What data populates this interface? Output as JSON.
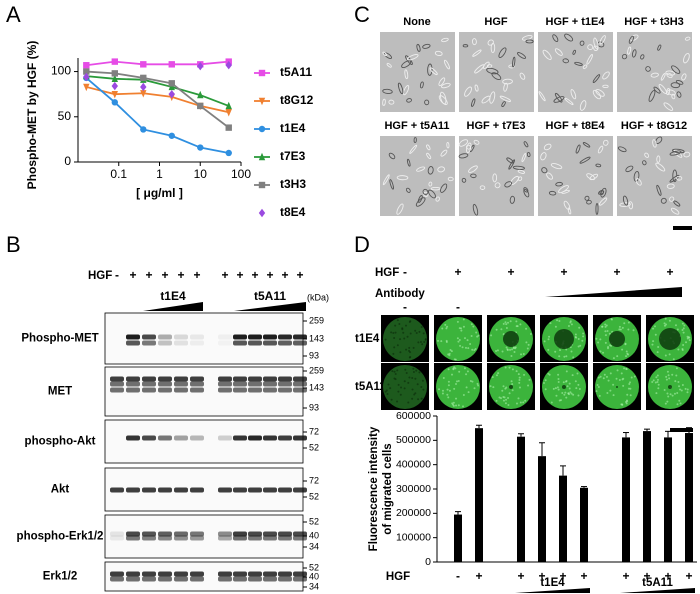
{
  "panel_labels": [
    "A",
    "B",
    "C",
    "D"
  ],
  "chart_data": [
    {
      "type": "line",
      "xscale": "log",
      "ylabel": "Phospho-MET by HGF (%)",
      "xlabel": "[ μg/ml ]",
      "x": [
        0.016,
        0.08,
        0.4,
        2,
        10,
        50
      ],
      "xlim": [
        0.01,
        100
      ],
      "xticks": [
        0.1,
        1,
        10,
        100
      ],
      "ylim": [
        0,
        115
      ],
      "yticks": [
        0,
        50,
        100
      ],
      "legend": "right",
      "series": [
        {
          "name": "t5A11",
          "color": "#e64ce6",
          "marker": "square",
          "values": [
            107,
            111,
            108,
            108,
            108,
            111
          ]
        },
        {
          "name": "t8G12",
          "color": "#f08030",
          "marker": "triangle-down",
          "values": [
            83,
            75,
            76,
            72,
            62,
            55
          ]
        },
        {
          "name": "t1E4",
          "color": "#2f8fe0",
          "marker": "circle",
          "values": [
            93,
            66,
            36,
            29,
            16,
            10
          ]
        },
        {
          "name": "t7E3",
          "color": "#2a9a3a",
          "marker": "triangle-up",
          "values": [
            95,
            92,
            91,
            83,
            74,
            62
          ]
        },
        {
          "name": "t3H3",
          "color": "#808080",
          "marker": "square",
          "values": [
            100,
            98,
            93,
            87,
            62,
            38
          ]
        },
        {
          "name": "t8E4",
          "color": "#9a4ae0",
          "marker": "diamond",
          "show_line": false,
          "values": [
            94,
            84,
            83,
            75,
            106,
            107
          ]
        }
      ]
    },
    {
      "type": "bar",
      "ylabel": [
        "Fluorescence intensity",
        "of migrated cells"
      ],
      "row_label": "HGF",
      "categories": [
        "-",
        "+",
        null,
        "+",
        "+",
        "+",
        "+",
        null,
        "+",
        "+",
        "+",
        "+"
      ],
      "values": [
        195000,
        550000,
        null,
        515000,
        435000,
        355000,
        305000,
        null,
        512000,
        538000,
        512000,
        530000
      ],
      "errors": [
        12000,
        12000,
        null,
        12000,
        55000,
        40000,
        5000,
        null,
        20000,
        8000,
        25000,
        22000
      ],
      "color": "#000000",
      "ylim": [
        0,
        600000
      ],
      "yticks": [
        0,
        100000,
        200000,
        300000,
        400000,
        500000,
        600000
      ],
      "groups": [
        "t1E4",
        "t5A11"
      ]
    }
  ],
  "blot": {
    "treatment_label": "HGF",
    "signs": [
      "-",
      "+",
      "+",
      "+",
      "+",
      "+",
      "+",
      "+",
      "+",
      "+",
      "+",
      "+"
    ],
    "groups": [
      "t1E4",
      "t5A11"
    ],
    "unit": "(kDa)",
    "rows": [
      {
        "label": "Phospho-MET",
        "markers": [
          259,
          143,
          93
        ]
      },
      {
        "label": "MET",
        "markers": [
          259,
          143,
          93
        ]
      },
      {
        "label": "phospho-Akt",
        "markers": [
          72,
          52
        ]
      },
      {
        "label": "Akt",
        "markers": [
          72,
          52
        ]
      },
      {
        "label": "phospho-Erk1/2",
        "markers": [
          52,
          40,
          34
        ]
      },
      {
        "label": "Erk1/2",
        "markers": [
          52,
          40,
          34
        ]
      }
    ]
  },
  "micrographs": {
    "labels": [
      "None",
      "HGF",
      "HGF + t1E4",
      "HGF + t3H3",
      "HGF + t5A11",
      "HGF + t7E3",
      "HGF + t8E4",
      "HGF + t8G12"
    ]
  },
  "migration": {
    "hgf_label": "HGF",
    "hgf_signs": [
      "-",
      "+",
      "+",
      "+",
      "+",
      "+"
    ],
    "antibody_label": "Antibody",
    "antibody_signs": [
      "-",
      "-"
    ],
    "rows": [
      "t1E4",
      "t5A11"
    ]
  }
}
